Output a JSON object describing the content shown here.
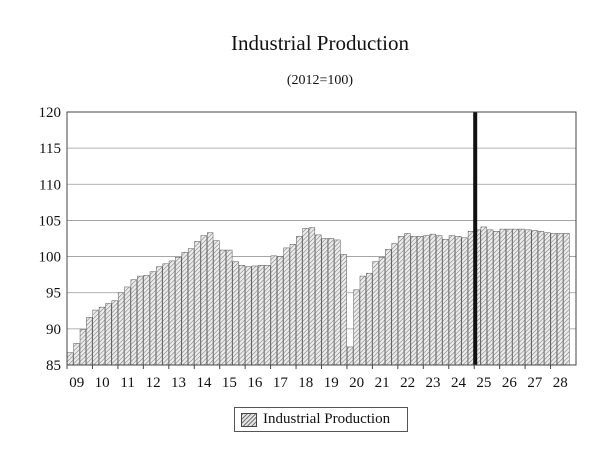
{
  "chart_data": {
    "type": "bar",
    "title": "Industrial Production",
    "subtitle": "(2012=100)",
    "xlabel": "",
    "ylabel": "",
    "ylim": [
      85,
      120
    ],
    "y_ticks": [
      "85",
      "90",
      "95",
      "100",
      "105",
      "110",
      "115",
      "120"
    ],
    "x_tick_labels": [
      "09",
      "10",
      "11",
      "12",
      "13",
      "14",
      "15",
      "16",
      "17",
      "18",
      "19",
      "20",
      "21",
      "22",
      "23",
      "24",
      "25",
      "26",
      "27",
      "28"
    ],
    "grid": true,
    "legend_position": "bottom-center",
    "forecast_marker_year": "25",
    "colors": {
      "bar_stroke": "#555555",
      "hatch": "#7a7a7a",
      "marker": "#111111",
      "grid": "#9a9a9a"
    },
    "series": [
      {
        "name": "Industrial Production",
        "frequency": "quarterly",
        "start": "2009 Q1",
        "values": [
          86.7,
          88.0,
          89.9,
          91.6,
          92.6,
          93.0,
          93.5,
          93.9,
          95.0,
          95.8,
          96.8,
          97.3,
          97.4,
          97.9,
          98.6,
          99.0,
          99.4,
          99.9,
          100.6,
          101.1,
          102.1,
          102.9,
          103.3,
          102.2,
          100.9,
          100.9,
          99.3,
          98.8,
          98.6,
          98.7,
          98.8,
          98.8,
          100.1,
          100.0,
          101.2,
          101.7,
          102.8,
          103.9,
          104.0,
          103.0,
          102.5,
          102.5,
          102.3,
          100.3,
          87.5,
          95.4,
          97.3,
          97.7,
          99.3,
          99.9,
          101.0,
          101.8,
          102.8,
          103.2,
          102.8,
          102.8,
          102.9,
          103.1,
          102.9,
          102.4,
          102.9,
          102.8,
          102.6,
          103.5,
          103.7,
          104.1,
          103.7,
          103.5,
          103.8,
          103.8,
          103.8,
          103.8,
          103.7,
          103.6,
          103.5,
          103.3,
          103.2,
          103.2,
          103.2
        ]
      }
    ]
  }
}
